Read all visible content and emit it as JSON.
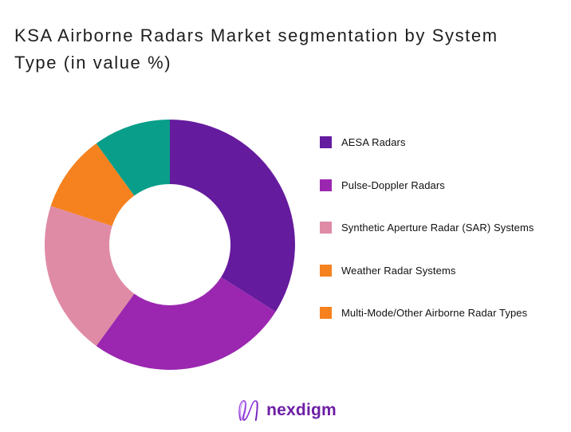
{
  "title": "KSA Airborne Radars Market segmentation by System Type (in value %)",
  "chart_data": {
    "type": "pie",
    "subtype": "donut",
    "title": "KSA Airborne Radars Market segmentation by System Type (in value %)",
    "unit": "percent_of_value",
    "start_angle_deg": 0,
    "direction": "clockwise",
    "inner_radius_ratio": 0.48,
    "legend_position": "right",
    "data_labels_shown": false,
    "series": [
      {
        "label": "AESA Radars",
        "value": 34,
        "color": "#651b9e",
        "legend_color": "#651b9e"
      },
      {
        "label": "Pulse-Doppler Radars",
        "value": 26,
        "color": "#9b27b0",
        "legend_color": "#9b27b0"
      },
      {
        "label": "Synthetic Aperture Radar (SAR) Systems",
        "value": 20,
        "color": "#df8ba6",
        "legend_color": "#df8ba6"
      },
      {
        "label": "Weather Radar Systems",
        "value": 10,
        "color": "#f5821f",
        "legend_color": "#f5821f"
      },
      {
        "label": "Multi-Mode/Other Airborne Radar Types",
        "value": 10,
        "color": "#089e8a",
        "legend_color": "#f5821f"
      }
    ]
  },
  "logo": {
    "text": "nexdigm",
    "text_color": "#6d1fa5",
    "mark": "nexdigm-n-mark"
  },
  "colors": {
    "background": "#ffffff",
    "title_text": "#1e1e1e",
    "legend_text": "#111111"
  }
}
